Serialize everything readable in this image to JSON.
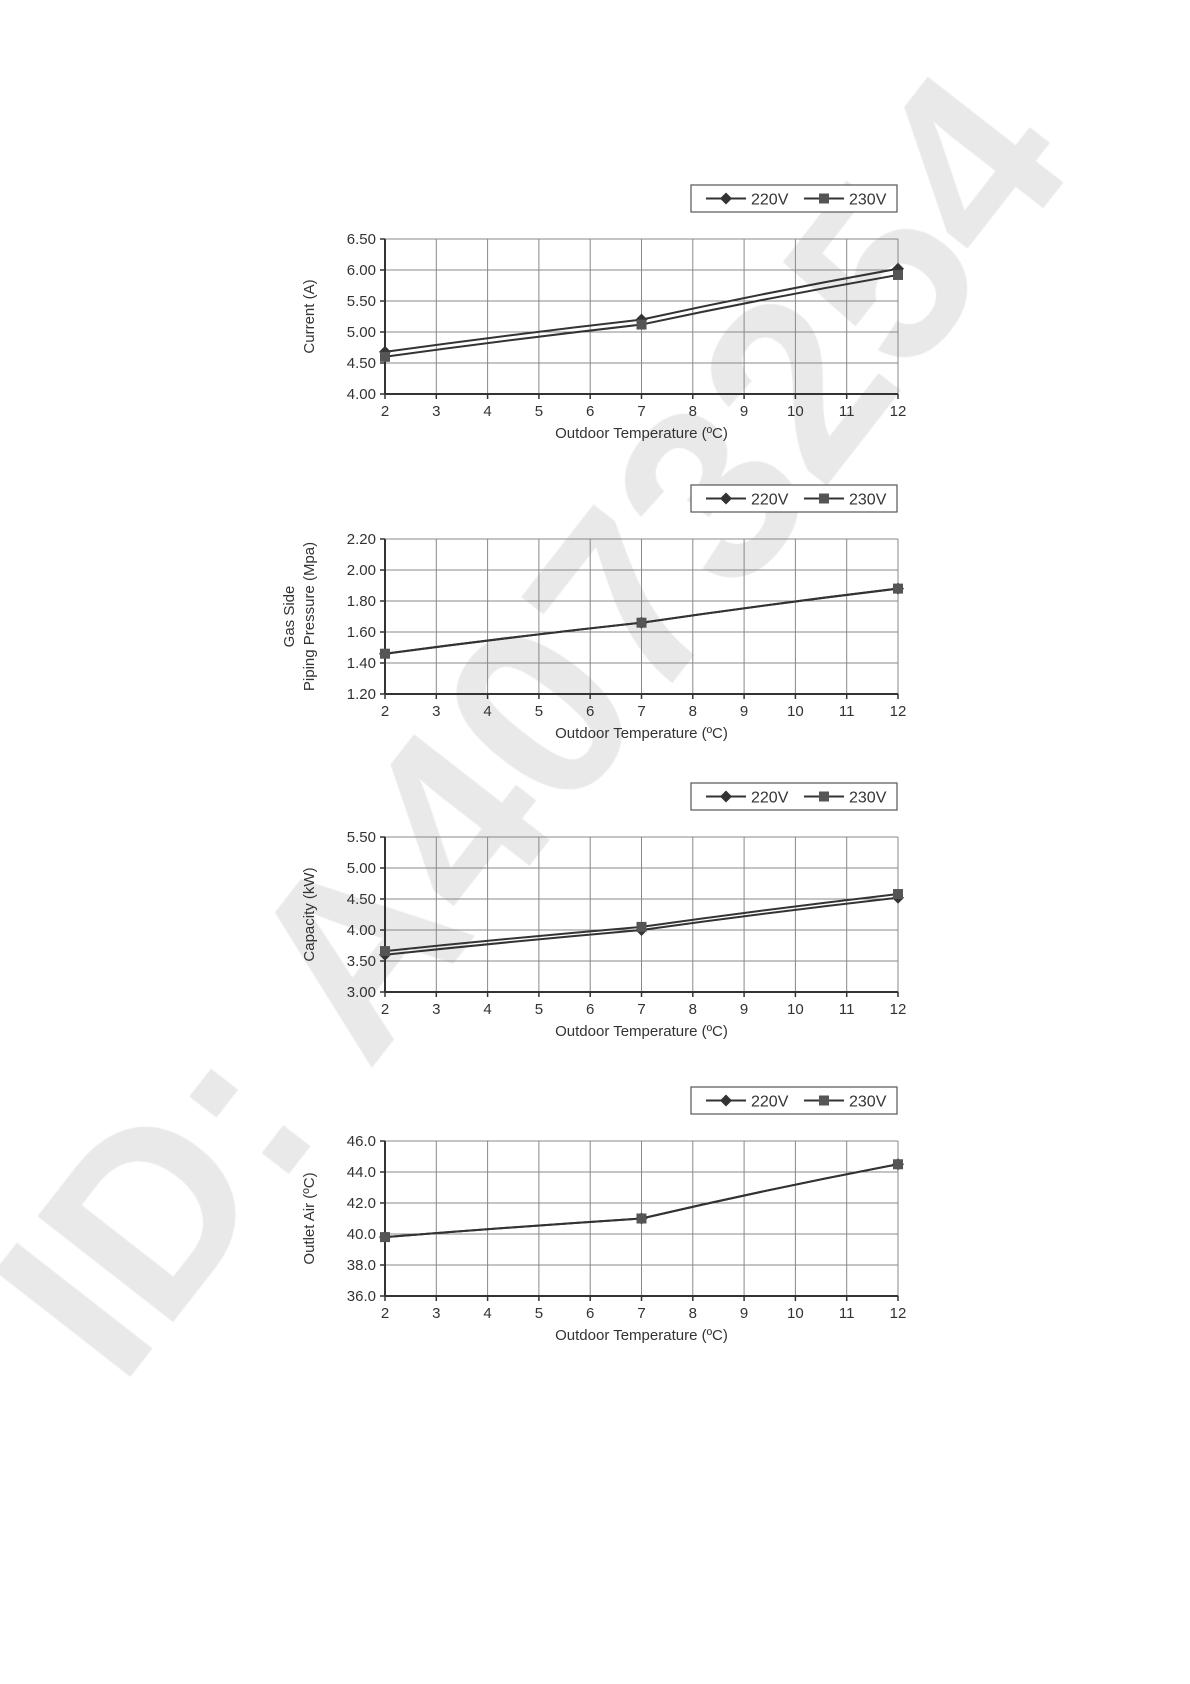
{
  "watermark": "ID: A4073254",
  "colors": {
    "line": "#333333",
    "grid": "#888888",
    "watermark": "#e6e6e6"
  },
  "chart_data": [
    {
      "type": "line",
      "xlabel": "Outdoor Temperature (ºC)",
      "ylabel": [
        "Current (A)"
      ],
      "x_ticks": [
        "2",
        "3",
        "4",
        "5",
        "6",
        "7",
        "8",
        "9",
        "10",
        "11",
        "12"
      ],
      "y_ticks": [
        "4.00",
        "4.50",
        "5.00",
        "5.50",
        "6.00",
        "6.50"
      ],
      "xlim": [
        2,
        12
      ],
      "ylim": [
        4.0,
        6.5
      ],
      "grid": true,
      "legend": "top-right",
      "x": [
        2,
        7,
        12
      ],
      "series": [
        {
          "name": "220V",
          "marker": "diamond",
          "values": [
            4.68,
            5.2,
            6.02
          ]
        },
        {
          "name": "230V",
          "marker": "square",
          "values": [
            4.6,
            5.12,
            5.92
          ]
        }
      ]
    },
    {
      "type": "line",
      "xlabel": "Outdoor Temperature (ºC)",
      "ylabel": [
        "Gas Side",
        "Piping Pressure (Mpa)"
      ],
      "x_ticks": [
        "2",
        "3",
        "4",
        "5",
        "6",
        "7",
        "8",
        "9",
        "10",
        "11",
        "12"
      ],
      "y_ticks": [
        "1.20",
        "1.40",
        "1.60",
        "1.80",
        "2.00",
        "2.20"
      ],
      "xlim": [
        2,
        12
      ],
      "ylim": [
        1.2,
        2.2
      ],
      "grid": true,
      "legend": "top-right",
      "x": [
        2,
        7,
        12
      ],
      "series": [
        {
          "name": "220V",
          "marker": "diamond",
          "values": [
            1.46,
            1.66,
            1.88
          ]
        },
        {
          "name": "230V",
          "marker": "square",
          "values": [
            1.46,
            1.66,
            1.88
          ]
        }
      ]
    },
    {
      "type": "line",
      "xlabel": "Outdoor Temperature (ºC)",
      "ylabel": [
        "Capacity (kW)"
      ],
      "x_ticks": [
        "2",
        "3",
        "4",
        "5",
        "6",
        "7",
        "8",
        "9",
        "10",
        "11",
        "12"
      ],
      "y_ticks": [
        "3.00",
        "3.50",
        "4.00",
        "4.50",
        "5.00",
        "5.50"
      ],
      "xlim": [
        2,
        12
      ],
      "ylim": [
        3.0,
        5.5
      ],
      "grid": true,
      "legend": "top-right",
      "x": [
        2,
        7,
        12
      ],
      "series": [
        {
          "name": "220V",
          "marker": "diamond",
          "values": [
            3.6,
            4.0,
            4.52
          ]
        },
        {
          "name": "230V",
          "marker": "square",
          "values": [
            3.66,
            4.05,
            4.58
          ]
        }
      ]
    },
    {
      "type": "line",
      "xlabel": "Outdoor Temperature (ºC)",
      "ylabel": [
        "Outlet Air (ºC)"
      ],
      "x_ticks": [
        "2",
        "3",
        "4",
        "5",
        "6",
        "7",
        "8",
        "9",
        "10",
        "11",
        "12"
      ],
      "y_ticks": [
        "36.0",
        "38.0",
        "40.0",
        "42.0",
        "44.0",
        "46.0"
      ],
      "xlim": [
        2,
        12
      ],
      "ylim": [
        36,
        46
      ],
      "grid": true,
      "legend": "top-right",
      "x": [
        2,
        7,
        12
      ],
      "series": [
        {
          "name": "220V",
          "marker": "diamond",
          "values": [
            39.8,
            41.0,
            44.5
          ]
        },
        {
          "name": "230V",
          "marker": "square",
          "values": [
            39.8,
            41.0,
            44.5
          ]
        }
      ]
    }
  ]
}
